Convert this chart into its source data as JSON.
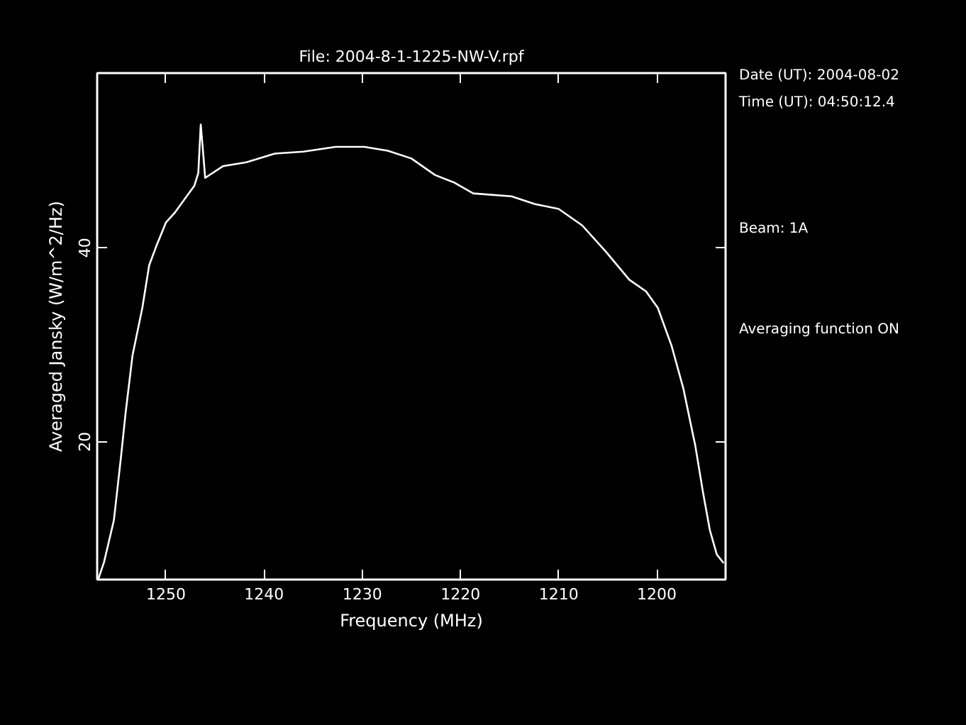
{
  "chart_data": {
    "type": "line",
    "title": "File: 2004-8-1-1225-NW-V.rpf",
    "xlabel": "Frequency (MHz)",
    "ylabel": "Averaged Jansky (W/m^2/Hz)",
    "annotations": [
      "Date (UT): 2004-08-02",
      "Time (UT): 04:50:12.4",
      "Beam: 1A",
      "Averaging function ON"
    ],
    "xlim": [
      1257,
      1193
    ],
    "ylim": [
      5.8,
      58
    ],
    "xticks": [
      1250,
      1240,
      1230,
      1220,
      1210,
      1200
    ],
    "yticks": [
      20,
      40
    ],
    "series": [
      {
        "color": "#ffffff",
        "x": [
          1256.9,
          1256.3,
          1255.3,
          1254.6,
          1254.1,
          1253.4,
          1252.4,
          1251.7,
          1251.0,
          1250.0,
          1249.1,
          1247.1,
          1246.7,
          1246.45,
          1246.2,
          1246.0,
          1244.2,
          1241.8,
          1238.9,
          1236.0,
          1232.7,
          1229.8,
          1227.4,
          1225.0,
          1222.6,
          1220.6,
          1218.7,
          1214.8,
          1212.4,
          1210.0,
          1207.6,
          1205.2,
          1202.8,
          1201.1,
          1199.9,
          1198.5,
          1197.3,
          1196.5,
          1196.1,
          1195.3,
          1194.6,
          1193.9,
          1193.2
        ],
        "values": [
          5.8,
          7.6,
          11.9,
          18.2,
          23.0,
          28.9,
          33.8,
          38.2,
          40.1,
          42.6,
          43.6,
          46.4,
          47.7,
          52.7,
          49.7,
          47.2,
          48.4,
          48.8,
          49.7,
          49.9,
          50.4,
          50.4,
          50.0,
          49.2,
          47.5,
          46.7,
          45.6,
          45.3,
          44.5,
          44.0,
          42.3,
          39.6,
          36.7,
          35.5,
          33.8,
          29.9,
          25.5,
          21.6,
          19.7,
          14.8,
          10.9,
          8.4,
          7.5
        ]
      }
    ]
  }
}
